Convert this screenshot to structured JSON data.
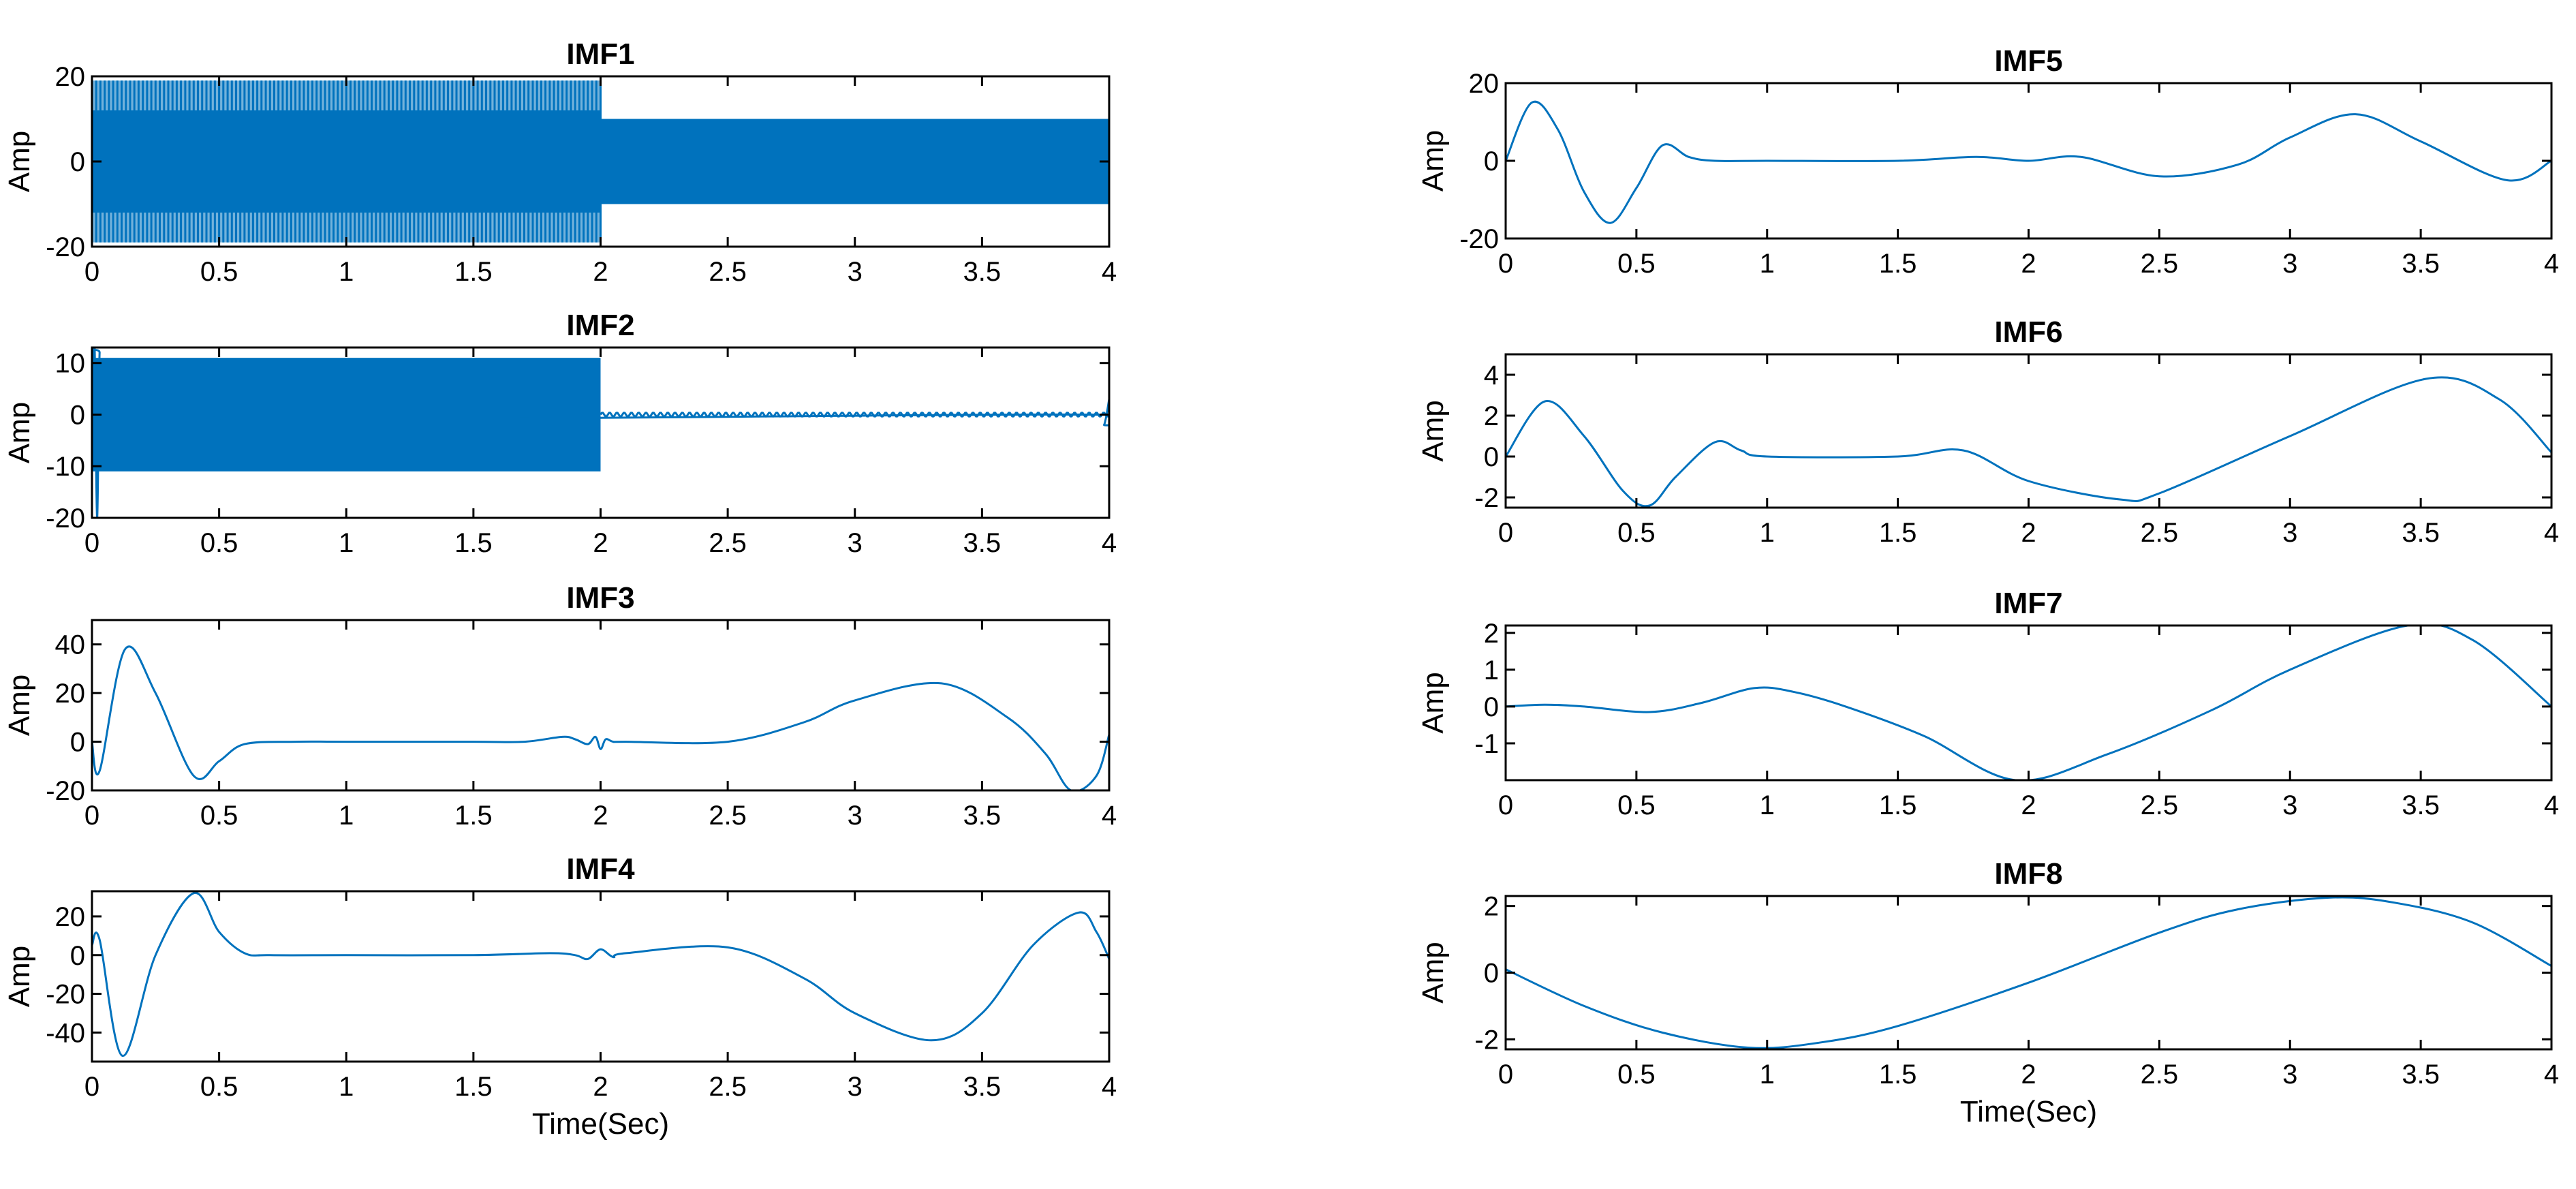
{
  "chart_data": [
    {
      "type": "line",
      "title": "IMF1",
      "xlabel": "",
      "ylabel": "Amp",
      "xlim": [
        0,
        4
      ],
      "ylim": [
        -20,
        20
      ],
      "xticks": [
        0,
        0.5,
        1,
        1.5,
        2,
        2.5,
        3,
        3.5,
        4
      ],
      "xtick_labels": [
        "0",
        "0.5",
        "1",
        "1.5",
        "2",
        "2.5",
        "3",
        "3.5",
        "4"
      ],
      "yticks": [
        -20,
        0,
        20
      ],
      "ytick_labels": [
        "-20",
        "0",
        "20"
      ],
      "grid": false,
      "color": "#0072BD",
      "oscillation": [
        {
          "x_start": 0,
          "x_end": 2,
          "amplitude": 19,
          "inner_amplitude": 12,
          "cycles_per_sec": 60
        },
        {
          "x_start": 2,
          "x_end": 4,
          "amplitude": 10,
          "inner_amplitude": 10,
          "cycles_per_sec": 60
        }
      ]
    },
    {
      "type": "line",
      "title": "IMF2",
      "xlabel": "",
      "ylabel": "Amp",
      "xlim": [
        0,
        4
      ],
      "ylim": [
        -20,
        13
      ],
      "xticks": [
        0,
        0.5,
        1,
        1.5,
        2,
        2.5,
        3,
        3.5,
        4
      ],
      "xtick_labels": [
        "0",
        "0.5",
        "1",
        "1.5",
        "2",
        "2.5",
        "3",
        "3.5",
        "4"
      ],
      "yticks": [
        -20,
        -10,
        0,
        10
      ],
      "ytick_labels": [
        "-20",
        "-10",
        "0",
        "10"
      ],
      "grid": false,
      "color": "#0072BD",
      "oscillation": [
        {
          "x_start": 0,
          "x_end": 2,
          "amplitude": 11,
          "inner_amplitude": 0,
          "cycles_per_sec": 35
        },
        {
          "x_start": 2,
          "x_end": 4,
          "amplitude": 0.4,
          "inner_amplitude": 0,
          "cycles_per_sec": 35
        }
      ],
      "x": [
        0,
        0.01,
        0.02,
        0.03,
        0.04,
        3.96,
        3.98,
        4
      ],
      "y": [
        0,
        14,
        -20,
        12,
        0,
        0,
        -2,
        3
      ]
    },
    {
      "type": "line",
      "title": "IMF3",
      "xlabel": "",
      "ylabel": "Amp",
      "xlim": [
        0,
        4
      ],
      "ylim": [
        -20,
        50
      ],
      "xticks": [
        0,
        0.5,
        1,
        1.5,
        2,
        2.5,
        3,
        3.5,
        4
      ],
      "xtick_labels": [
        "0",
        "0.5",
        "1",
        "1.5",
        "2",
        "2.5",
        "3",
        "3.5",
        "4"
      ],
      "yticks": [
        -20,
        0,
        20,
        40
      ],
      "ytick_labels": [
        "-20",
        "0",
        "20",
        "40"
      ],
      "grid": false,
      "color": "#0072BD",
      "x": [
        0,
        0.03,
        0.13,
        0.25,
        0.4,
        0.5,
        0.6,
        0.8,
        1,
        1.5,
        1.7,
        1.85,
        1.9,
        1.95,
        1.98,
        2.0,
        2.02,
        2.05,
        2.1,
        2.5,
        2.8,
        3.0,
        3.34,
        3.6,
        3.75,
        3.85,
        3.95,
        4
      ],
      "y": [
        0,
        -12,
        38,
        20,
        -14,
        -8,
        -1,
        0,
        0,
        0,
        0,
        2,
        1,
        -1,
        2,
        -3,
        1,
        0,
        0,
        0,
        8,
        17,
        24,
        10,
        -5,
        -20,
        -14,
        3
      ]
    },
    {
      "type": "line",
      "title": "IMF4",
      "xlabel": "Time(Sec)",
      "ylabel": "Amp",
      "xlim": [
        0,
        4
      ],
      "ylim": [
        -55,
        33
      ],
      "xticks": [
        0,
        0.5,
        1,
        1.5,
        2,
        2.5,
        3,
        3.5,
        4
      ],
      "xtick_labels": [
        "0",
        "0.5",
        "1",
        "1.5",
        "2",
        "2.5",
        "3",
        "3.5",
        "4"
      ],
      "yticks": [
        -40,
        -20,
        0,
        20
      ],
      "ytick_labels": [
        "-40",
        "-20",
        "0",
        "20"
      ],
      "grid": false,
      "color": "#0072BD",
      "x": [
        0,
        0.03,
        0.12,
        0.25,
        0.4,
        0.5,
        0.6,
        0.7,
        1,
        1.5,
        1.8,
        1.9,
        1.95,
        2.0,
        2.05,
        2.1,
        2.5,
        2.8,
        3.0,
        3.3,
        3.5,
        3.7,
        3.88,
        3.95,
        4
      ],
      "y": [
        5,
        8,
        -52,
        0,
        32,
        12,
        1,
        0,
        0,
        0,
        1,
        0,
        -2,
        3,
        -1,
        1,
        4,
        -12,
        -30,
        -44,
        -30,
        5,
        22,
        12,
        -2
      ]
    },
    {
      "type": "line",
      "title": "IMF5",
      "xlabel": "",
      "ylabel": "Amp",
      "xlim": [
        0,
        4
      ],
      "ylim": [
        -20,
        20
      ],
      "xticks": [
        0,
        0.5,
        1,
        1.5,
        2,
        2.5,
        3,
        3.5,
        4
      ],
      "xtick_labels": [
        "0",
        "0.5",
        "1",
        "1.5",
        "2",
        "2.5",
        "3",
        "3.5",
        "4"
      ],
      "yticks": [
        -20,
        0,
        20
      ],
      "ytick_labels": [
        "-20",
        "0",
        "20"
      ],
      "grid": false,
      "color": "#0072BD",
      "x": [
        0,
        0.1,
        0.2,
        0.3,
        0.4,
        0.5,
        0.6,
        0.7,
        0.8,
        1,
        1.5,
        1.8,
        2.0,
        2.2,
        2.5,
        2.8,
        3.0,
        3.25,
        3.5,
        3.83,
        4
      ],
      "y": [
        0,
        15,
        8,
        -8,
        -16,
        -7,
        4,
        1,
        0,
        0,
        0,
        1,
        0,
        1,
        -4,
        -1,
        6,
        12,
        5,
        -5,
        0
      ]
    },
    {
      "type": "line",
      "title": "IMF6",
      "xlabel": "",
      "ylabel": "Amp",
      "xlim": [
        0,
        4
      ],
      "ylim": [
        -2.5,
        5
      ],
      "xticks": [
        0,
        0.5,
        1,
        1.5,
        2,
        2.5,
        3,
        3.5,
        4
      ],
      "xtick_labels": [
        "0",
        "0.5",
        "1",
        "1.5",
        "2",
        "2.5",
        "3",
        "3.5",
        "4"
      ],
      "yticks": [
        -2,
        0,
        2,
        4
      ],
      "ytick_labels": [
        "-2",
        "0",
        "2",
        "4"
      ],
      "grid": false,
      "color": "#0072BD",
      "x": [
        0,
        0.15,
        0.3,
        0.45,
        0.55,
        0.65,
        0.8,
        0.9,
        1.0,
        1.5,
        1.75,
        2.0,
        2.35,
        2.5,
        3.0,
        3.52,
        3.8,
        4
      ],
      "y": [
        0,
        2.7,
        1.0,
        -1.7,
        -2.4,
        -1.0,
        0.7,
        0.3,
        0.0,
        0.0,
        0.3,
        -1.2,
        -2.1,
        -1.8,
        1.0,
        3.8,
        2.8,
        0.2
      ]
    },
    {
      "type": "line",
      "title": "IMF7",
      "xlabel": "",
      "ylabel": "Amp",
      "xlim": [
        0,
        4
      ],
      "ylim": [
        -2,
        2.2
      ],
      "xticks": [
        0,
        0.5,
        1,
        1.5,
        2,
        2.5,
        3,
        3.5,
        4
      ],
      "xtick_labels": [
        "0",
        "0.5",
        "1",
        "1.5",
        "2",
        "2.5",
        "3",
        "3.5",
        "4"
      ],
      "yticks": [
        -1,
        0,
        1,
        2
      ],
      "ytick_labels": [
        "-1",
        "0",
        "1",
        "2"
      ],
      "grid": false,
      "color": "#0072BD",
      "x": [
        0,
        0.15,
        0.3,
        0.55,
        0.75,
        0.95,
        1.1,
        1.3,
        1.6,
        1.95,
        2.3,
        2.7,
        3.0,
        3.45,
        3.7,
        4
      ],
      "y": [
        0,
        0.05,
        0.0,
        -0.15,
        0.1,
        0.5,
        0.4,
        0.0,
        -0.8,
        -2.0,
        -1.3,
        -0.1,
        1.0,
        2.2,
        1.8,
        0.0
      ]
    },
    {
      "type": "line",
      "title": "IMF8",
      "xlabel": "Time(Sec)",
      "ylabel": "Amp",
      "xlim": [
        0,
        4
      ],
      "ylim": [
        -2.3,
        2.3
      ],
      "xticks": [
        0,
        0.5,
        1,
        1.5,
        2,
        2.5,
        3,
        3.5,
        4
      ],
      "xtick_labels": [
        "0",
        "0.5",
        "1",
        "1.5",
        "2",
        "2.5",
        "3",
        "3.5",
        "4"
      ],
      "yticks": [
        -2,
        0,
        2
      ],
      "ytick_labels": [
        "-2",
        "0",
        "2"
      ],
      "grid": false,
      "color": "#0072BD",
      "x": [
        0,
        0.3,
        0.6,
        0.93,
        1.2,
        1.5,
        2.0,
        2.5,
        2.8,
        3.15,
        3.4,
        3.7,
        4
      ],
      "y": [
        0.1,
        -1.0,
        -1.8,
        -2.25,
        -2.1,
        -1.6,
        -0.3,
        1.2,
        1.9,
        2.25,
        2.1,
        1.5,
        0.2
      ]
    }
  ]
}
